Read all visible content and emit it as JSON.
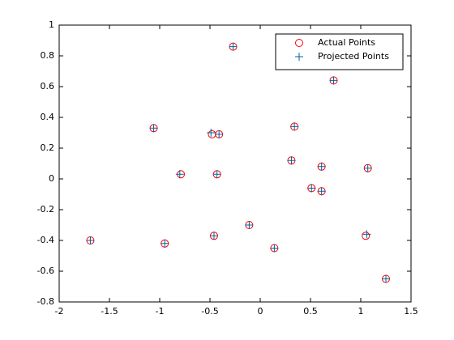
{
  "chart_data": {
    "type": "scatter",
    "xlim": [
      -2,
      1.5
    ],
    "ylim": [
      -0.8,
      1
    ],
    "xticks": [
      -2,
      -1.5,
      -1,
      -0.5,
      0,
      0.5,
      1,
      1.5
    ],
    "yticks": [
      -0.8,
      -0.6,
      -0.4,
      -0.2,
      0,
      0.2,
      0.4,
      0.6,
      0.8,
      1
    ],
    "legend": "top-right",
    "series": [
      {
        "name": "Actual Points",
        "color": "#ff0000",
        "marker": "o",
        "x": [
          -0.27,
          0.73,
          -1.06,
          -0.48,
          -0.41,
          0.34,
          0.31,
          0.61,
          1.07,
          -0.79,
          -0.43,
          0.51,
          0.61,
          -0.11,
          -1.69,
          -0.95,
          -0.46,
          1.05,
          0.14,
          1.25
        ],
        "values": [
          0.86,
          0.64,
          0.33,
          0.29,
          0.29,
          0.34,
          0.12,
          0.08,
          0.07,
          0.03,
          0.03,
          -0.06,
          -0.08,
          -0.3,
          -0.4,
          -0.42,
          -0.37,
          -0.37,
          -0.45,
          -0.65
        ]
      },
      {
        "name": "Projected Points",
        "color": "#0060a0",
        "marker": "+",
        "x": [
          -0.27,
          0.73,
          -1.06,
          -0.49,
          -0.41,
          0.34,
          0.31,
          0.61,
          1.07,
          -0.8,
          -0.43,
          0.51,
          0.61,
          -0.11,
          -1.69,
          -0.95,
          -0.46,
          1.06,
          0.14,
          1.25
        ],
        "values": [
          0.86,
          0.64,
          0.33,
          0.3,
          0.29,
          0.34,
          0.12,
          0.08,
          0.07,
          0.03,
          0.03,
          -0.06,
          -0.08,
          -0.3,
          -0.4,
          -0.42,
          -0.37,
          -0.36,
          -0.45,
          -0.65
        ]
      }
    ]
  }
}
